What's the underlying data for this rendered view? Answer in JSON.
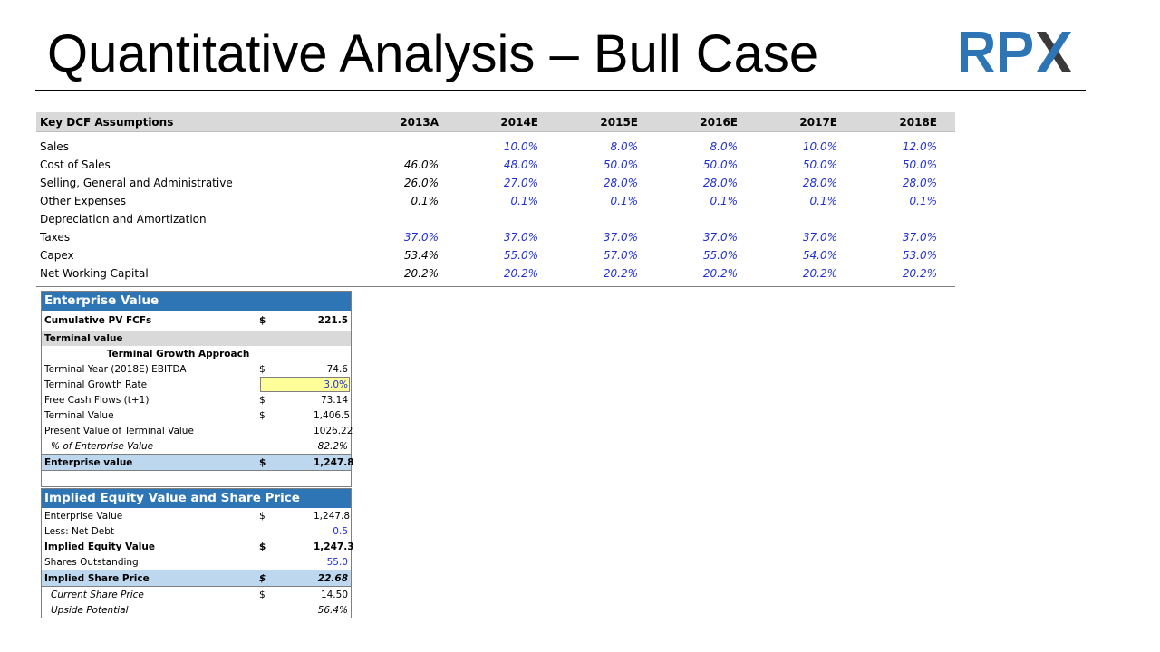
{
  "title": "Quantitative Analysis – Bull Case",
  "logo_text": "RPX",
  "colors": {
    "logo_blue": "#2e75b6",
    "logo_dark": "#3a3a3a",
    "input_blue": "#1f2fd6",
    "panel_header": "#2e75b6"
  },
  "dcf": {
    "header": [
      "Key DCF Assumptions",
      "2013A",
      "2014E",
      "2015E",
      "2016E",
      "2017E",
      "2018E"
    ],
    "rows": [
      {
        "label": "Sales",
        "values": [
          "",
          "10.0%",
          "8.0%",
          "8.0%",
          "10.0%",
          "12.0%"
        ]
      },
      {
        "label": "Cost of Sales",
        "values": [
          "46.0%",
          "48.0%",
          "50.0%",
          "50.0%",
          "50.0%",
          "50.0%"
        ]
      },
      {
        "label": "Selling, General and Administrative",
        "values": [
          "26.0%",
          "27.0%",
          "28.0%",
          "28.0%",
          "28.0%",
          "28.0%"
        ]
      },
      {
        "label": "Other Expenses",
        "values": [
          "0.1%",
          "0.1%",
          "0.1%",
          "0.1%",
          "0.1%",
          "0.1%"
        ]
      },
      {
        "label": "Depreciation and Amortization",
        "values": [
          "",
          "",
          "",
          "",
          "",
          ""
        ]
      },
      {
        "label": "Taxes",
        "values": [
          "37.0%",
          "37.0%",
          "37.0%",
          "37.0%",
          "37.0%",
          "37.0%"
        ]
      },
      {
        "label": "Capex",
        "values": [
          "53.4%",
          "55.0%",
          "57.0%",
          "55.0%",
          "54.0%",
          "53.0%"
        ]
      },
      {
        "label": "Net Working Capital",
        "values": [
          "20.2%",
          "20.2%",
          "20.2%",
          "20.2%",
          "20.2%",
          "20.2%"
        ]
      }
    ]
  },
  "ev": {
    "title": "Enterprise Value",
    "cum_pv": {
      "label": "Cumulative PV FCFs",
      "cur": "$",
      "value": "221.5"
    },
    "terminal_value_header": "Terminal value",
    "approach": "Terminal Growth Approach",
    "ebitda": {
      "label": "Terminal Year (2018E) EBITDA",
      "cur": "$",
      "value": "74.6"
    },
    "growth": {
      "label": "Terminal Growth Rate",
      "value": "3.0%"
    },
    "fcf": {
      "label": "Free Cash Flows (t+1)",
      "cur": "$",
      "value": "73.14"
    },
    "tv": {
      "label": "Terminal Value",
      "cur": "$",
      "value": "1,406.5"
    },
    "pv_tv": {
      "label": "Present Value of Terminal Value",
      "value": "1026.22"
    },
    "pct_ev": {
      "label": "% of Enterprise Value",
      "value": "82.2%"
    },
    "ev_total": {
      "label": "Enterprise value",
      "cur": "$",
      "value": "1,247.8"
    }
  },
  "equity": {
    "title": "Implied Equity Value and Share Price",
    "ev": {
      "label": "Enterprise Value",
      "cur": "$",
      "value": "1,247.8"
    },
    "net_debt": {
      "label": "Less: Net Debt",
      "value": "0.5"
    },
    "equity_value": {
      "label": "Implied Equity Value",
      "cur": "$",
      "value": "1,247.3"
    },
    "shares": {
      "label": "Shares Outstanding",
      "value": "55.0"
    },
    "share_price": {
      "label": "Implied Share Price",
      "cur": "$",
      "value": "22.68"
    },
    "current_price": {
      "label": "Current Share Price",
      "cur": "$",
      "value": "14.50"
    },
    "upside": {
      "label": "Upside Potential",
      "value": "56.4%"
    }
  }
}
